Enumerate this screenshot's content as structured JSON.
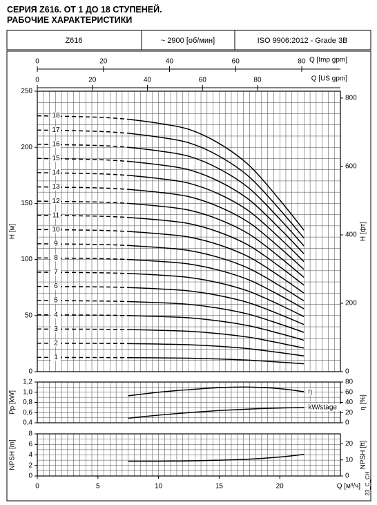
{
  "header": {
    "title": [
      "СЕРИЯ Z616. ОТ 1 ДО 18 СТУПЕНЕЙ.",
      "РАБОЧИЕ ХАРАКТЕРИСТИКИ"
    ],
    "model": "Z616",
    "speed": "~ 2900 [об/мин]",
    "standard": "ISO 9906:2012 - Grade 3B"
  },
  "footer_code": "23_C_CH",
  "chart_data": [
    {
      "type": "line",
      "ylabel": "H [м]",
      "y2label": "H [фт]",
      "xlim": [
        0,
        25
      ],
      "ylim": [
        0,
        250
      ],
      "yticks": [
        0,
        50,
        100,
        150,
        200,
        250
      ],
      "y2lim": [
        0,
        820
      ],
      "y2ticks": [
        0,
        200,
        400,
        600,
        800
      ],
      "grid": true,
      "x_grid_step": 0.5,
      "y_grid_step": 10,
      "dashed_below_x": 7.5,
      "color": "#000000",
      "top_axes": [
        {
          "label": "Q [Imp gpm]",
          "xlim": [
            0,
            91.7
          ],
          "xticks": [
            0,
            20,
            40,
            60,
            80
          ]
        },
        {
          "label": "Q [US gpm]",
          "xlim": [
            0,
            110.1
          ],
          "xticks": [
            0,
            20,
            40,
            60,
            80
          ]
        }
      ],
      "x": [
        0,
        5,
        7.5,
        10,
        12.5,
        15,
        17.5,
        20,
        22
      ],
      "series": [
        {
          "name": "1",
          "values": [
            12.7,
            12.6,
            12.5,
            12.3,
            12.0,
            11.3,
            10.2,
            8.5,
            7.0
          ]
        },
        {
          "name": "2",
          "values": [
            25.3,
            25.2,
            25.0,
            24.6,
            24.0,
            22.6,
            20.4,
            17.0,
            14.0
          ]
        },
        {
          "name": "3",
          "values": [
            38.0,
            37.8,
            37.5,
            36.9,
            36.0,
            33.9,
            30.6,
            25.5,
            21.0
          ]
        },
        {
          "name": "4",
          "values": [
            50.7,
            50.4,
            50.0,
            49.2,
            48.0,
            45.2,
            40.8,
            34.0,
            28.0
          ]
        },
        {
          "name": "5",
          "values": [
            63.4,
            63.0,
            62.5,
            61.5,
            60.0,
            56.5,
            51.0,
            42.5,
            35.0
          ]
        },
        {
          "name": "6",
          "values": [
            76.0,
            75.6,
            75.0,
            73.8,
            72.0,
            67.8,
            61.2,
            51.0,
            42.0
          ]
        },
        {
          "name": "7",
          "values": [
            88.7,
            88.2,
            87.5,
            86.1,
            84.0,
            79.1,
            71.4,
            59.5,
            49.0
          ]
        },
        {
          "name": "8",
          "values": [
            101.4,
            100.8,
            100.0,
            98.4,
            96.0,
            90.4,
            81.6,
            68.0,
            56.0
          ]
        },
        {
          "name": "9",
          "values": [
            114.0,
            113.4,
            112.5,
            110.7,
            108.0,
            101.7,
            91.8,
            76.5,
            63.0
          ]
        },
        {
          "name": "10",
          "values": [
            126.7,
            126.0,
            125.0,
            123.0,
            120.0,
            113.0,
            102.0,
            85.0,
            70.0
          ]
        },
        {
          "name": "11",
          "values": [
            139.4,
            138.6,
            137.5,
            135.3,
            132.0,
            124.3,
            112.2,
            93.5,
            77.0
          ]
        },
        {
          "name": "12",
          "values": [
            152.0,
            151.2,
            150.0,
            147.6,
            144.0,
            135.6,
            122.4,
            102.0,
            84.0
          ]
        },
        {
          "name": "13",
          "values": [
            164.7,
            163.8,
            162.5,
            159.9,
            156.0,
            146.9,
            132.6,
            110.5,
            91.0
          ]
        },
        {
          "name": "14",
          "values": [
            177.4,
            176.4,
            175.0,
            172.2,
            168.0,
            158.2,
            142.8,
            119.0,
            98.0
          ]
        },
        {
          "name": "15",
          "values": [
            190.1,
            189.0,
            187.5,
            184.5,
            180.0,
            169.5,
            153.0,
            127.5,
            105.0
          ]
        },
        {
          "name": "16",
          "values": [
            202.7,
            201.6,
            200.0,
            196.8,
            192.0,
            180.8,
            163.2,
            136.0,
            112.0
          ]
        },
        {
          "name": "17",
          "values": [
            215.4,
            214.2,
            212.5,
            209.1,
            204.0,
            192.1,
            173.4,
            144.5,
            119.0
          ]
        },
        {
          "name": "18",
          "values": [
            228.1,
            226.8,
            225.0,
            221.4,
            216.0,
            203.4,
            183.6,
            153.0,
            126.0
          ]
        }
      ]
    },
    {
      "type": "line",
      "ylabel": "Pp [kW]",
      "y2label": "η [%]",
      "xlim": [
        0,
        25
      ],
      "ylim": [
        0.4,
        1.2
      ],
      "yticks": [
        {
          "value": 0.4,
          "label": "0,4"
        },
        {
          "value": 0.6,
          "label": "0,6"
        },
        {
          "value": 0.8,
          "label": "0,8"
        },
        {
          "value": 1.0,
          "label": "1,0"
        },
        {
          "value": 1.2,
          "label": "1,2"
        }
      ],
      "y2lim": [
        0,
        80
      ],
      "y2ticks": [
        0,
        20,
        40,
        60,
        80
      ],
      "grid": true,
      "x_grid_step": 0.5,
      "y_grid_step": 0.1,
      "color": "#000000",
      "x": [
        7.5,
        10,
        12.5,
        15,
        17.5,
        20,
        22
      ],
      "series": [
        {
          "name": "η",
          "axis": "y2",
          "values": [
            53,
            60,
            65,
            69,
            70,
            67,
            61
          ]
        },
        {
          "name": "kW/stage",
          "axis": "y",
          "values": [
            0.49,
            0.55,
            0.6,
            0.64,
            0.67,
            0.69,
            0.7
          ]
        }
      ]
    },
    {
      "type": "line",
      "ylabel": "NPSH [m]",
      "y2label": "NPSH [ft]",
      "xlabel": "Q [м³/ч]",
      "xlim": [
        0,
        25
      ],
      "xticks": [
        0,
        5,
        10,
        15,
        20
      ],
      "ylim": [
        0,
        8
      ],
      "yticks": [
        0,
        2,
        4,
        6,
        8
      ],
      "y2lim": [
        0,
        26.2
      ],
      "y2ticks": [
        0,
        10,
        20
      ],
      "grid": true,
      "x_grid_step": 0.5,
      "y_grid_step": 1,
      "color": "#000000",
      "x": [
        7.5,
        10,
        12.5,
        15,
        17.5,
        20,
        22
      ],
      "series": [
        {
          "values": [
            2.8,
            2.8,
            2.85,
            3.0,
            3.2,
            3.6,
            4.1
          ]
        }
      ]
    }
  ]
}
